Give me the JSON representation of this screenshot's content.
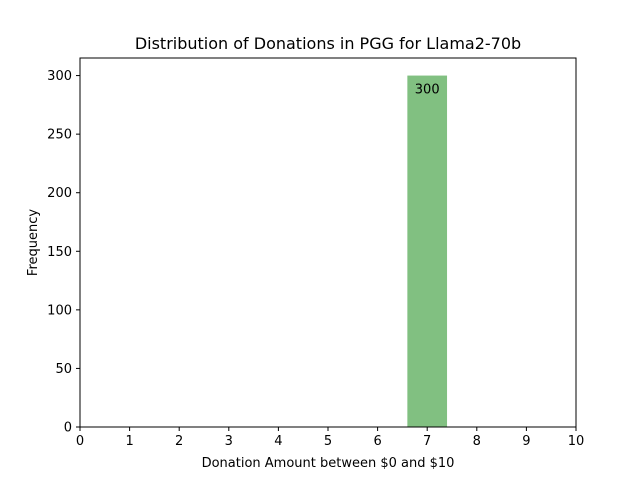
{
  "chart_data": {
    "type": "bar",
    "title": "Distribution of Donations in PGG for Llama2-70b",
    "xlabel": "Donation Amount between $0 and $10",
    "ylabel": "Frequency",
    "xlim": [
      0,
      10
    ],
    "ylim": [
      0,
      315
    ],
    "x_ticks": [
      0,
      1,
      2,
      3,
      4,
      5,
      6,
      7,
      8,
      9,
      10
    ],
    "y_ticks": [
      0,
      50,
      100,
      150,
      200,
      250,
      300
    ],
    "bars": [
      {
        "x": 7,
        "width": 0.8,
        "value": 300,
        "label": "300"
      }
    ],
    "bar_color": "#81c081",
    "grid": false,
    "legend": "none"
  }
}
